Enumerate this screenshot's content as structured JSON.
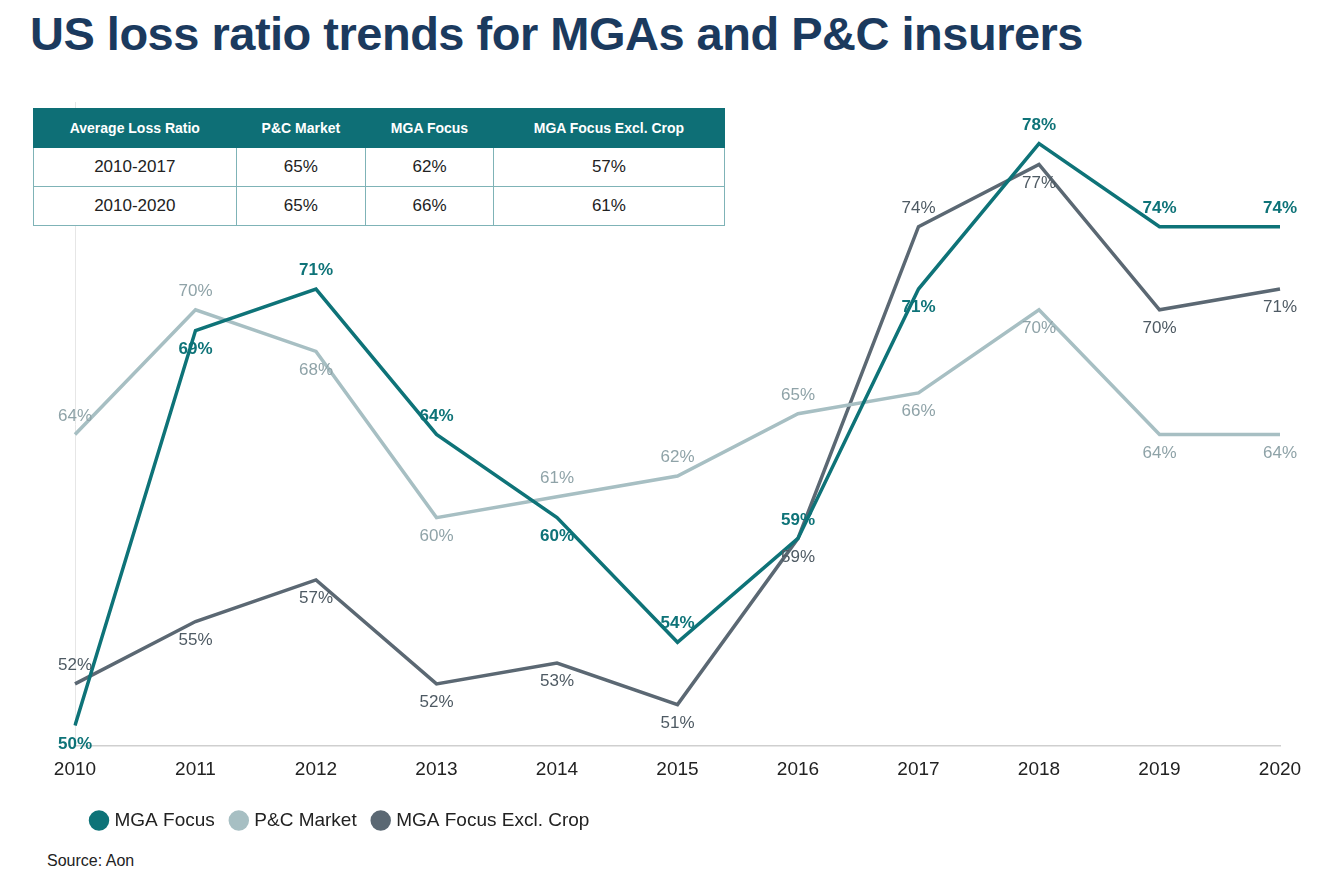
{
  "chart_data": {
    "type": "line",
    "title": "US loss ratio trends for MGAs and P&C insurers",
    "categories": [
      "2010",
      "2011",
      "2012",
      "2013",
      "2014",
      "2015",
      "2016",
      "2017",
      "2018",
      "2019",
      "2020"
    ],
    "series": [
      {
        "name": "MGA Focus",
        "color": "#0e7378",
        "values": [
          50,
          69,
          71,
          64,
          60,
          54,
          59,
          71,
          78,
          74,
          74
        ],
        "value_labels": [
          "50%",
          "69%",
          "71%",
          "64%",
          "60%",
          "54%",
          "59%",
          "71%",
          "78%",
          "74%",
          "74%"
        ]
      },
      {
        "name": "P&C Market",
        "color": "#a7bfc3",
        "values": [
          64,
          70,
          68,
          60,
          61,
          62,
          65,
          66,
          70,
          64,
          64
        ],
        "value_labels": [
          "64%",
          "70%",
          "68%",
          "60%",
          "61%",
          "62%",
          "65%",
          "66%",
          "70%",
          "64%",
          "64%"
        ]
      },
      {
        "name": "MGA Focus Excl. Crop",
        "color": "#5b6873",
        "values": [
          52,
          55,
          57,
          52,
          53,
          51,
          59,
          74,
          77,
          70,
          71
        ],
        "value_labels": [
          "52%",
          "55%",
          "57%",
          "52%",
          "53%",
          "51%",
          "59%",
          "74%",
          "77%",
          "70%",
          "71%"
        ]
      }
    ],
    "ylim": [
      49,
      80
    ],
    "grid": false,
    "legend": "bottom",
    "data_labels": true,
    "tick_labels": "x",
    "table": {
      "header": [
        "Average Loss Ratio",
        "P&C Market",
        "MGA Focus",
        "MGA Focus Excl. Crop"
      ],
      "rows": [
        [
          "2010-2017",
          "65%",
          "62%",
          "57%"
        ],
        [
          "2010-2020",
          "65%",
          "66%",
          "61%"
        ]
      ]
    },
    "source": "Source: Aon"
  }
}
